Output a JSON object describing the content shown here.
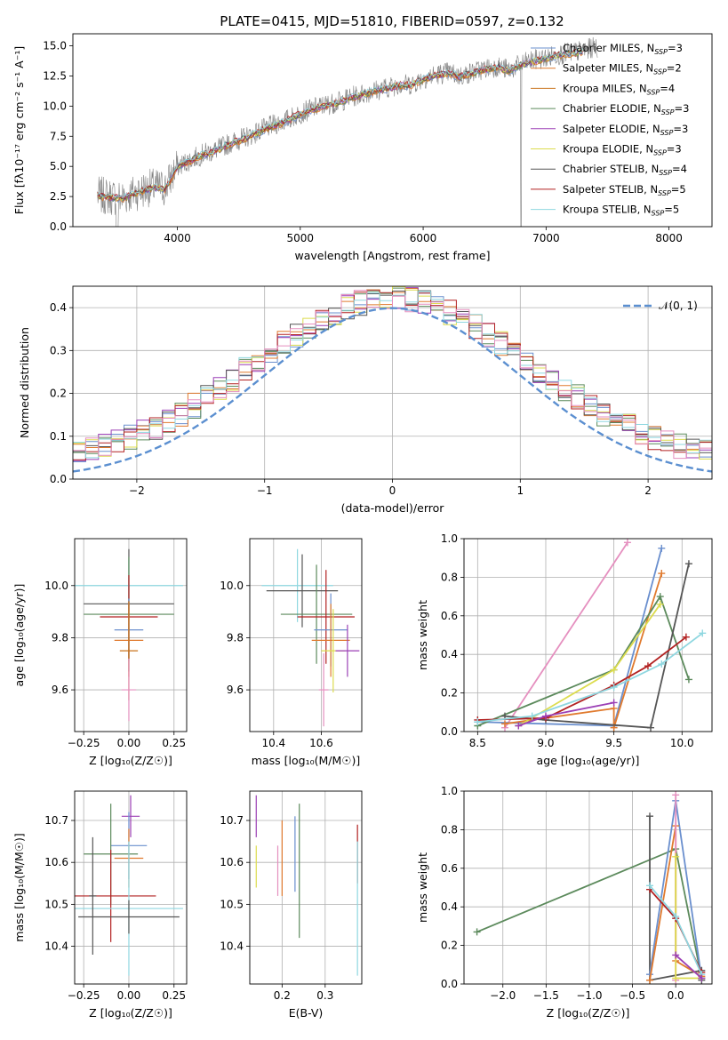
{
  "figure": {
    "title": "PLATE=0415, MJD=51810, FIBERID=0597, z=0.132"
  },
  "chart_data": [
    {
      "id": "spectrum",
      "type": "line",
      "xlabel": "wavelength [Angstrom, rest frame]",
      "ylabel": "Flux [fλ10⁻¹⁷ erg cm⁻² s⁻¹ A⁻¹]",
      "xlim": [
        3150,
        8350
      ],
      "ylim": [
        0,
        16
      ],
      "xticks": [
        4000,
        5000,
        6000,
        7000,
        8000
      ],
      "yticks": [
        0.0,
        2.5,
        5.0,
        7.5,
        10.0,
        12.5,
        15.0
      ],
      "grid": false,
      "legend": "top-right",
      "data_series": {
        "name": "",
        "color": "#808080",
        "x": [
          3350,
          3550,
          3700,
          3800,
          3900,
          4000,
          4100,
          4200,
          4300,
          4400,
          4500,
          4600,
          4700,
          4800,
          4900,
          5000,
          5100,
          5200,
          5300,
          5400,
          5500,
          5600,
          5700,
          5800,
          5900,
          6000,
          6100,
          6200,
          6300,
          6400,
          6500,
          6600,
          6700,
          6800,
          6900,
          7000,
          7100,
          7200,
          7300,
          7400
        ],
        "y": [
          2.6,
          2.4,
          3.0,
          3.3,
          3.2,
          5.0,
          5.5,
          6.0,
          6.3,
          6.8,
          7.2,
          7.6,
          8.1,
          8.5,
          8.9,
          9.4,
          9.8,
          10.1,
          10.3,
          10.7,
          11.0,
          11.3,
          11.5,
          11.8,
          11.8,
          12.3,
          12.6,
          12.8,
          12.5,
          12.8,
          13.1,
          13.3,
          13.0,
          13.5,
          13.8,
          14.0,
          14.3,
          14.4,
          14.6,
          14.9
        ]
      },
      "models": [
        {
          "name": "Chabrier MILES, N_SSP=3",
          "color": "#6a8fce"
        },
        {
          "name": "Salpeter MILES, N_SSP=2",
          "color": "#e07a2e"
        },
        {
          "name": "Kroupa MILES, N_SSP=4",
          "color": "#c9731d"
        },
        {
          "name": "Chabrier ELODIE, N_SSP=3",
          "color": "#5c8a5c"
        },
        {
          "name": "Salpeter ELODIE, N_SSP=3",
          "color": "#9b3fb5"
        },
        {
          "name": "Kroupa ELODIE, N_SSP=3",
          "color": "#dcdc4e"
        },
        {
          "name": "Chabrier STELIB, N_SSP=4",
          "color": "#555555"
        },
        {
          "name": "Salpeter STELIB, N_SSP=5",
          "color": "#b22222"
        },
        {
          "name": "Kroupa STELIB, N_SSP=5",
          "color": "#8fd7e0"
        }
      ]
    },
    {
      "id": "residuals",
      "type": "line",
      "xlabel": "(data-model)/error",
      "ylabel": "Normed distribution",
      "xlim": [
        -2.5,
        2.5
      ],
      "ylim": [
        0,
        0.45
      ],
      "xticks": [
        -2,
        -1,
        0,
        1,
        2
      ],
      "yticks": [
        0.0,
        0.1,
        0.2,
        0.3,
        0.4
      ],
      "grid": true,
      "legend": "top-right",
      "gaussian": {
        "name": "𝒩(0, 1)",
        "color": "#5b8fd0",
        "mu": 0,
        "sigma": 1
      },
      "bin_width": 0.1,
      "hist_colors": [
        "#6a8fce",
        "#e07a2e",
        "#5c8a5c",
        "#9b3fb5",
        "#dcdc4e",
        "#555555",
        "#b22222",
        "#8fd7e0",
        "#e58fbf"
      ]
    },
    {
      "id": "age_vs_Z",
      "type": "scatter",
      "xlabel": "Z [log₁₀(Z/Z☉)]",
      "ylabel": "age  [log₁₀(age/yr)]",
      "xlim": [
        -0.3,
        0.32
      ],
      "ylim": [
        9.44,
        10.18
      ],
      "xticks": [
        -0.25,
        0.0,
        0.25
      ],
      "yticks": [
        9.6,
        9.8,
        10.0
      ],
      "grid": true,
      "points": [
        {
          "x": 0.0,
          "y": 9.93,
          "xerr": 0.25,
          "yerr": 0.21,
          "color": "#555555"
        },
        {
          "x": 0.0,
          "y": 10.0,
          "xerr": 0.3,
          "yerr": 0.1,
          "color": "#8fd7e0"
        },
        {
          "x": 0.0,
          "y": 9.89,
          "xerr": 0.25,
          "yerr": 0.22,
          "color": "#5c8a5c"
        },
        {
          "x": 0.0,
          "y": 9.88,
          "xerr": 0.16,
          "yerr": 0.16,
          "color": "#b22222"
        },
        {
          "x": 0.0,
          "y": 9.83,
          "xerr": 0.08,
          "yerr": 0.12,
          "color": "#6a8fce"
        },
        {
          "x": 0.0,
          "y": 9.79,
          "xerr": 0.08,
          "yerr": 0.14,
          "color": "#e07a2e"
        },
        {
          "x": 0.0,
          "y": 9.75,
          "xerr": 0.05,
          "yerr": 0.19,
          "color": "#c9731d"
        },
        {
          "x": 0.0,
          "y": 9.6,
          "xerr": 0.04,
          "yerr": 0.12,
          "color": "#e58fbf"
        }
      ]
    },
    {
      "id": "age_vs_mass",
      "type": "scatter",
      "xlabel": "mass [log₁₀(M/M☉)]",
      "ylabel": "",
      "xlim": [
        10.3,
        10.77
      ],
      "ylim": [
        9.44,
        10.18
      ],
      "xticks": [
        10.4,
        10.6
      ],
      "yticks": [
        9.6,
        9.8,
        10.0
      ],
      "grid": true,
      "points": [
        {
          "x": 10.5,
          "y": 10.0,
          "xerr": 0.15,
          "yerr": 0.14,
          "color": "#8fd7e0"
        },
        {
          "x": 10.52,
          "y": 9.98,
          "xerr": 0.15,
          "yerr": 0.14,
          "color": "#555555"
        },
        {
          "x": 10.58,
          "y": 9.89,
          "xerr": 0.15,
          "yerr": 0.19,
          "color": "#5c8a5c"
        },
        {
          "x": 10.62,
          "y": 9.88,
          "xerr": 0.12,
          "yerr": 0.18,
          "color": "#b22222"
        },
        {
          "x": 10.64,
          "y": 9.83,
          "xerr": 0.07,
          "yerr": 0.14,
          "color": "#6a8fce"
        },
        {
          "x": 10.64,
          "y": 9.79,
          "xerr": 0.08,
          "yerr": 0.14,
          "color": "#e07a2e"
        },
        {
          "x": 10.65,
          "y": 9.75,
          "xerr": 0.05,
          "yerr": 0.16,
          "color": "#dcdc4e"
        },
        {
          "x": 10.71,
          "y": 9.75,
          "xerr": 0.05,
          "yerr": 0.1,
          "color": "#9b3fb5"
        },
        {
          "x": 10.61,
          "y": 9.6,
          "xerr": 0.02,
          "yerr": 0.14,
          "color": "#e58fbf"
        }
      ]
    },
    {
      "id": "weight_vs_age",
      "type": "line",
      "xlabel": "age  [log₁₀(age/yr)]",
      "ylabel": "mass weight",
      "xlim": [
        8.4,
        10.22
      ],
      "ylim": [
        0,
        1.0
      ],
      "xticks": [
        8.5,
        9.0,
        9.5,
        10.0
      ],
      "yticks": [
        0.0,
        0.2,
        0.4,
        0.6,
        0.8,
        1.0
      ],
      "grid": true,
      "series": [
        {
          "color": "#e58fbf",
          "x": [
            8.7,
            9.6
          ],
          "y": [
            0.02,
            0.98
          ]
        },
        {
          "color": "#6a8fce",
          "x": [
            8.5,
            9.5,
            9.85
          ],
          "y": [
            0.05,
            0.03,
            0.95
          ]
        },
        {
          "color": "#e07a2e",
          "x": [
            8.7,
            9.5,
            9.5,
            9.85
          ],
          "y": [
            0.04,
            0.12,
            0.02,
            0.82
          ]
        },
        {
          "color": "#5c8a5c",
          "x": [
            8.5,
            9.5,
            9.84,
            10.05
          ],
          "y": [
            0.03,
            0.32,
            0.7,
            0.27
          ]
        },
        {
          "color": "#dcdc4e",
          "x": [
            8.8,
            9.5,
            9.84
          ],
          "y": [
            0.03,
            0.32,
            0.66
          ]
        },
        {
          "color": "#555555",
          "x": [
            8.7,
            9.0,
            9.77,
            10.05
          ],
          "y": [
            0.08,
            0.06,
            0.02,
            0.87
          ]
        },
        {
          "color": "#b22222",
          "x": [
            8.5,
            9.0,
            9.5,
            9.75,
            10.03
          ],
          "y": [
            0.06,
            0.07,
            0.24,
            0.34,
            0.49
          ]
        },
        {
          "color": "#9b3fb5",
          "x": [
            8.8,
            9.0,
            9.5
          ],
          "y": [
            0.03,
            0.08,
            0.15
          ]
        },
        {
          "color": "#8fd7e0",
          "x": [
            8.5,
            8.9,
            9.5,
            9.85,
            10.15
          ],
          "y": [
            0.05,
            0.08,
            0.23,
            0.35,
            0.51
          ]
        }
      ]
    },
    {
      "id": "mass_vs_Z",
      "type": "scatter",
      "xlabel": "Z [log₁₀(Z/Z☉)]",
      "ylabel": "mass [log₁₀(M/M☉)]",
      "xlim": [
        -0.3,
        0.32
      ],
      "ylim": [
        10.31,
        10.77
      ],
      "xticks": [
        -0.25,
        0.0,
        0.25
      ],
      "yticks": [
        10.4,
        10.5,
        10.6,
        10.7
      ],
      "grid": true,
      "points": [
        {
          "x": 0.01,
          "y": 10.71,
          "xerr": 0.05,
          "yerr": 0.05,
          "color": "#9b3fb5"
        },
        {
          "x": 0.0,
          "y": 10.64,
          "xerr": 0.1,
          "yerr": 0.08,
          "color": "#6a8fce"
        },
        {
          "x": -0.1,
          "y": 10.62,
          "xerr": 0.15,
          "yerr": 0.12,
          "color": "#5c8a5c"
        },
        {
          "x": 0.0,
          "y": 10.61,
          "xerr": 0.08,
          "yerr": 0.07,
          "color": "#e07a2e"
        },
        {
          "x": -0.1,
          "y": 10.52,
          "xerr": 0.25,
          "yerr": 0.11,
          "color": "#b22222"
        },
        {
          "x": 0.0,
          "y": 10.49,
          "xerr": 0.3,
          "yerr": 0.16,
          "color": "#8fd7e0"
        },
        {
          "x": 0.0,
          "y": 10.47,
          "xerr": 0.28,
          "yerr": 0.04,
          "color": "#555555"
        },
        {
          "x": -0.2,
          "y": 10.52,
          "xerr": 0.02,
          "yerr": 0.14,
          "color": "#555555"
        }
      ]
    },
    {
      "id": "mass_vs_ebv",
      "type": "scatter",
      "xlabel": "E(B-V)",
      "ylabel": "",
      "xlim": [
        0.125,
        0.385
      ],
      "ylim": [
        10.31,
        10.77
      ],
      "xticks": [
        0.2,
        0.3
      ],
      "yticks": [
        10.4,
        10.5,
        10.6,
        10.7
      ],
      "grid": true,
      "points": [
        {
          "x": 0.14,
          "y": 10.71,
          "xerr": 0.0,
          "yerr": 0.05,
          "color": "#9b3fb5"
        },
        {
          "x": 0.14,
          "y": 10.59,
          "xerr": 0.0,
          "yerr": 0.05,
          "color": "#dcdc4e"
        },
        {
          "x": 0.19,
          "y": 10.58,
          "xerr": 0.0,
          "yerr": 0.06,
          "color": "#e58fbf"
        },
        {
          "x": 0.2,
          "y": 10.61,
          "xerr": 0.0,
          "yerr": 0.09,
          "color": "#e07a2e"
        },
        {
          "x": 0.23,
          "y": 10.62,
          "xerr": 0.0,
          "yerr": 0.09,
          "color": "#6a8fce"
        },
        {
          "x": 0.24,
          "y": 10.58,
          "xerr": 0.0,
          "yerr": 0.16,
          "color": "#5c8a5c"
        },
        {
          "x": 0.375,
          "y": 10.62,
          "xerr": 0.0,
          "yerr": 0.07,
          "color": "#b22222"
        },
        {
          "x": 0.375,
          "y": 10.49,
          "xerr": 0.0,
          "yerr": 0.16,
          "color": "#8fd7e0"
        }
      ]
    },
    {
      "id": "weight_vs_Z",
      "type": "line",
      "xlabel": "Z [log₁₀(Z/Z☉)]",
      "ylabel": "mass weight",
      "xlim": [
        -2.45,
        0.42
      ],
      "ylim": [
        0,
        1.0
      ],
      "xticks": [
        -2.0,
        -1.5,
        -1.0,
        -0.5,
        0.0
      ],
      "yticks": [
        0.0,
        0.2,
        0.4,
        0.6,
        0.8,
        1.0
      ],
      "grid": true,
      "series": [
        {
          "color": "#5c8a5c",
          "x": [
            -2.3,
            0.0,
            0.3
          ],
          "y": [
            0.27,
            0.7,
            0.03
          ]
        },
        {
          "color": "#555555",
          "x": [
            -0.3,
            -0.3,
            0.3,
            0.3
          ],
          "y": [
            0.87,
            0.02,
            0.07,
            0.02
          ]
        },
        {
          "color": "#6a8fce",
          "x": [
            -0.3,
            0.0,
            0.3
          ],
          "y": [
            0.05,
            0.95,
            0.03
          ]
        },
        {
          "color": "#e07a2e",
          "x": [
            -0.3,
            0.0,
            0.0,
            0.3
          ],
          "y": [
            0.02,
            0.82,
            0.12,
            0.04
          ]
        },
        {
          "color": "#e58fbf",
          "x": [
            0.0,
            0.0
          ],
          "y": [
            0.02,
            0.98
          ]
        },
        {
          "color": "#dcdc4e",
          "x": [
            0.0,
            0.0,
            0.3
          ],
          "y": [
            0.66,
            0.03,
            0.03
          ]
        },
        {
          "color": "#b22222",
          "x": [
            -0.3,
            0.0,
            0.3
          ],
          "y": [
            0.49,
            0.34,
            0.06
          ]
        },
        {
          "color": "#8fd7e0",
          "x": [
            -0.3,
            0.0,
            0.3
          ],
          "y": [
            0.51,
            0.35,
            0.05
          ]
        },
        {
          "color": "#9b3fb5",
          "x": [
            0.0,
            0.3
          ],
          "y": [
            0.15,
            0.03
          ]
        }
      ]
    }
  ]
}
